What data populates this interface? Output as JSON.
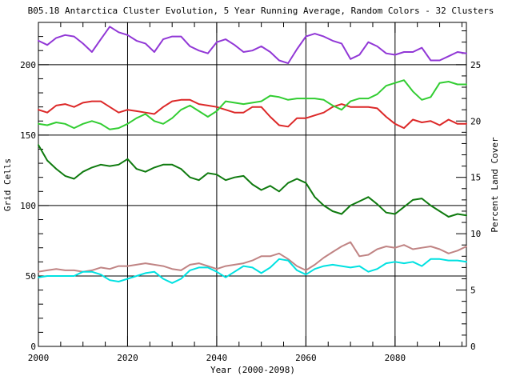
{
  "chart_data": {
    "type": "line",
    "title": "B05.18 Antarctica Cluster Evolution, 5 Year Running Average, Random Colors - 32 Clusters",
    "xlabel": "Year (2000-2098)",
    "ylabel_left": "Grid Cells",
    "ylabel_right": "Percent Land Cover",
    "x_range": [
      2000,
      2096
    ],
    "ylim_left": [
      0,
      230
    ],
    "ylim_right": [
      0,
      28.75
    ],
    "x_major_ticks": [
      2000,
      2020,
      2040,
      2060,
      2080
    ],
    "x_minor_step": 5,
    "y_left_major_ticks": [
      0,
      50,
      100,
      150,
      200
    ],
    "y_left_minor_step": 10,
    "y_right_major_ticks": [
      0,
      5,
      10,
      15,
      20,
      25
    ],
    "y_right_minor_step": 1,
    "grid": "black gridlines at major ticks (2020,2040,2060,2080 vertical; 50,100,150,200 horizontal)",
    "legend": "none",
    "axis_note": "left axis Grid Cells, right axis Percent Land Cover; 1 grid cell = 0.125 percent",
    "x": [
      2000,
      2002,
      2004,
      2006,
      2008,
      2010,
      2012,
      2014,
      2016,
      2018,
      2020,
      2022,
      2024,
      2026,
      2028,
      2030,
      2032,
      2034,
      2036,
      2038,
      2040,
      2042,
      2044,
      2046,
      2048,
      2050,
      2052,
      2054,
      2056,
      2058,
      2060,
      2062,
      2064,
      2066,
      2068,
      2070,
      2072,
      2074,
      2076,
      2078,
      2080,
      2082,
      2084,
      2086,
      2088,
      2090,
      2092,
      2094,
      2096
    ],
    "series": [
      {
        "name": "cluster-blue-violet",
        "color": "#9137d6",
        "values": [
          217,
          214,
          219,
          221,
          220,
          215,
          209,
          218,
          227,
          223,
          221,
          217,
          215,
          209,
          218,
          220,
          220,
          213,
          210,
          208,
          216,
          218,
          214,
          209,
          210,
          213,
          209,
          203,
          201,
          211,
          220,
          222,
          220,
          217,
          215,
          204,
          207,
          216,
          213,
          208,
          207,
          209,
          209,
          212,
          203,
          203,
          206,
          209,
          208
        ]
      },
      {
        "name": "cluster-red",
        "color": "#dc2828",
        "values": [
          168,
          166,
          171,
          172,
          170,
          173,
          174,
          174,
          170,
          166,
          168,
          167,
          166,
          165,
          170,
          174,
          175,
          175,
          172,
          171,
          170,
          168,
          166,
          166,
          170,
          170,
          163,
          157,
          156,
          162,
          162,
          164,
          166,
          170,
          172,
          170,
          170,
          170,
          169,
          163,
          158,
          155,
          161,
          159,
          160,
          157,
          161,
          158,
          158
        ]
      },
      {
        "name": "cluster-lime-green",
        "color": "#32cd32",
        "values": [
          158,
          157,
          159,
          158,
          155,
          158,
          160,
          158,
          154,
          155,
          158,
          162,
          165,
          160,
          158,
          162,
          168,
          171,
          167,
          163,
          167,
          174,
          173,
          172,
          173,
          174,
          178,
          177,
          175,
          176,
          176,
          176,
          175,
          171,
          168,
          174,
          176,
          176,
          179,
          185,
          187,
          189,
          181,
          175,
          177,
          187,
          188,
          186,
          186
        ]
      },
      {
        "name": "cluster-forest-green",
        "color": "#0e7a0e",
        "values": [
          143,
          132,
          126,
          121,
          119,
          124,
          127,
          129,
          128,
          129,
          133,
          126,
          124,
          127,
          129,
          129,
          126,
          120,
          118,
          123,
          122,
          118,
          120,
          121,
          115,
          111,
          114,
          110,
          116,
          119,
          116,
          106,
          100,
          96,
          94,
          100,
          103,
          106,
          101,
          95,
          94,
          99,
          104,
          105,
          100,
          96,
          92,
          94,
          93
        ]
      },
      {
        "name": "cluster-rosy-brown",
        "color": "#c08484",
        "values": [
          53,
          54,
          55,
          54,
          54,
          53,
          54,
          56,
          55,
          57,
          57,
          58,
          59,
          58,
          57,
          55,
          54,
          58,
          59,
          57,
          55,
          57,
          58,
          59,
          61,
          64,
          64,
          66,
          62,
          57,
          54,
          58,
          63,
          67,
          71,
          74,
          64,
          65,
          69,
          71,
          70,
          72,
          69,
          70,
          71,
          69,
          66,
          68,
          71
        ]
      },
      {
        "name": "cluster-cyan",
        "color": "#00e1e1",
        "values": [
          49,
          50,
          50,
          50,
          50,
          53,
          53,
          51,
          47,
          46,
          48,
          50,
          52,
          53,
          48,
          45,
          48,
          54,
          56,
          56,
          53,
          49,
          53,
          57,
          56,
          52,
          56,
          62,
          61,
          54,
          51,
          55,
          57,
          58,
          57,
          56,
          57,
          53,
          55,
          59,
          60,
          59,
          60,
          57,
          62,
          62,
          61,
          61,
          60
        ]
      }
    ]
  }
}
